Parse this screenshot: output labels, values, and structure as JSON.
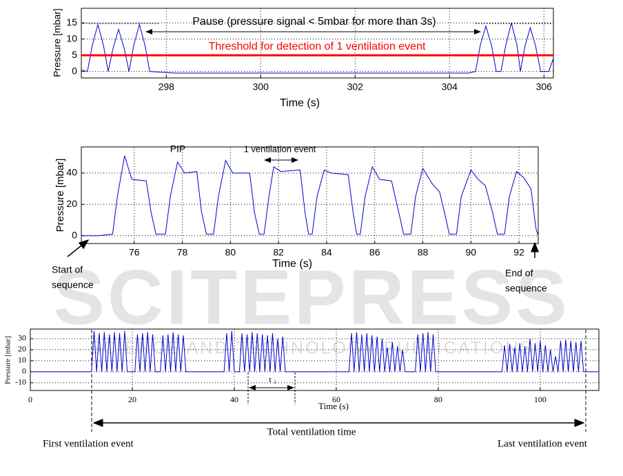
{
  "watermark": {
    "title": "SCITEPRESS",
    "subtitle": "SCIENCE AND TECHNOLOGY PUBLICATIONS"
  },
  "chart_data": [
    {
      "type": "line",
      "x_label": "Time (s)",
      "y_label": "Pressure [mbar]",
      "annotations": [
        "Pause (pressure signal < 5mbar for more than 3s)",
        "Threshold for detection of 1 ventilation event"
      ],
      "threshold": 5,
      "threshold_color": "#ff0000",
      "xlim": [
        296.2,
        306.2
      ],
      "xticks": [
        298,
        300,
        302,
        304,
        306
      ],
      "ylim": [
        -2,
        19.5
      ],
      "yticks": [
        0,
        5,
        10,
        15
      ],
      "grid": true,
      "series": [
        {
          "color": "#0000cc",
          "x": [
            296.2,
            296.33,
            296.43,
            296.55,
            296.67,
            296.77,
            296.87,
            296.99,
            297.11,
            297.21,
            297.31,
            297.43,
            297.55,
            297.65,
            298.2,
            304.4,
            304.55,
            304.65,
            304.77,
            304.89,
            304.99,
            305.09,
            305.19,
            305.31,
            305.43,
            305.5,
            305.6,
            305.71,
            305.82,
            305.93,
            306.1,
            306.2
          ],
          "values": [
            0.5,
            0,
            8,
            14.5,
            8,
            0,
            7,
            13,
            7,
            0,
            8,
            14.5,
            8,
            0,
            -0.5,
            -0.5,
            0,
            8,
            14,
            8,
            0,
            0,
            8,
            15,
            8,
            0,
            8,
            13.5,
            8,
            0,
            0,
            4
          ]
        }
      ]
    },
    {
      "type": "line",
      "x_label": "Time (s)",
      "y_label": "Pressure [mbar]",
      "annotations": [
        "PIP",
        "1 ventilation event",
        "Start of",
        "sequence",
        "End of",
        "sequence"
      ],
      "xlim": [
        73.8,
        92.8
      ],
      "xticks": [
        76,
        78,
        80,
        82,
        84,
        86,
        88,
        90,
        92
      ],
      "ylim": [
        -5,
        56.7
      ],
      "yticks": [
        0,
        20,
        40
      ],
      "grid": true,
      "series": [
        {
          "color": "#0000cc",
          "x": [
            73.8,
            74.5,
            75.1,
            75.3,
            75.6,
            75.9,
            76.5,
            76.7,
            76.9,
            77.3,
            77.5,
            77.8,
            78.1,
            78.6,
            78.8,
            79.0,
            79.3,
            79.5,
            79.8,
            80.1,
            80.8,
            81.0,
            81.2,
            81.4,
            81.6,
            81.8,
            82.1,
            82.9,
            83.1,
            83.25,
            83.4,
            83.6,
            83.9,
            84.2,
            84.9,
            85.1,
            85.25,
            85.4,
            85.6,
            85.9,
            86.2,
            86.7,
            87.0,
            87.2,
            87.5,
            87.7,
            88.0,
            88.4,
            88.7,
            88.9,
            89.1,
            89.4,
            89.6,
            90.0,
            90.3,
            90.6,
            90.9,
            91.1,
            91.4,
            91.6,
            91.9,
            92.2,
            92.5,
            92.7,
            92.8
          ],
          "values": [
            0,
            0,
            1,
            25,
            51,
            36,
            35,
            15,
            1,
            1,
            25,
            47,
            40,
            41,
            15,
            1,
            1,
            25,
            48,
            40,
            40,
            15,
            1,
            1,
            25,
            44,
            41,
            42,
            15,
            1,
            1,
            25,
            42,
            40,
            39,
            15,
            1,
            1,
            25,
            44,
            36,
            35,
            15,
            1,
            1,
            25,
            43,
            33,
            28,
            15,
            1,
            1,
            25,
            42,
            36,
            32,
            15,
            1,
            1,
            25,
            41,
            37,
            30,
            5,
            0
          ]
        }
      ]
    },
    {
      "type": "line",
      "x_label": "Time (s)",
      "y_label": "Pressure [mbar]",
      "annotations": [
        "t",
        "i",
        "First ventilation event",
        "Total ventilation time",
        "Last ventilation event"
      ],
      "xlim": [
        0,
        111.5
      ],
      "xticks": [
        0,
        20,
        40,
        60,
        80,
        100
      ],
      "ylim": [
        -17,
        38.75
      ],
      "yticks": [
        -10,
        0,
        10,
        20,
        30
      ],
      "grid": true,
      "series": [
        {
          "color": "#0000cc",
          "x": [
            0,
            12,
            12.5,
            13,
            13.5,
            14,
            14.5,
            15,
            15.5,
            16,
            16.5,
            17,
            17.5,
            18,
            18.5,
            19,
            20.5,
            21,
            21.5,
            22,
            22.5,
            23,
            23.5,
            24,
            24.5,
            25.5,
            26,
            26.5,
            27,
            27.5,
            28,
            28.5,
            29,
            29.5,
            30,
            30.5,
            31,
            38,
            38.5,
            39,
            39.5,
            40,
            41,
            41.5,
            42,
            42.5,
            43,
            43.5,
            44,
            44.5,
            45,
            45.5,
            46,
            46.5,
            47,
            47.5,
            48,
            48.5,
            49,
            49.5,
            50,
            62.5,
            63,
            63.5,
            64,
            64.5,
            65,
            65.5,
            66,
            66.5,
            67,
            67.5,
            68,
            68.5,
            69,
            69.5,
            70,
            70.5,
            71,
            71.5,
            72,
            72.5,
            73,
            73.5,
            75.5,
            76,
            76.5,
            77,
            77.5,
            78,
            78.5,
            79,
            79.5,
            92.5,
            93,
            93.5,
            94,
            94.5,
            95,
            95.5,
            96,
            96.5,
            97,
            97.5,
            98,
            98.5,
            99,
            99.5,
            100,
            100.5,
            101,
            101.5,
            102,
            102.5,
            103,
            103.5,
            104,
            104.5,
            105,
            105.5,
            106,
            106.5,
            107,
            107.5,
            108,
            108.5,
            111.5
          ],
          "values": [
            0,
            0,
            37,
            0,
            35,
            0,
            36,
            0,
            34,
            0,
            36,
            0,
            35,
            0,
            37,
            0,
            0,
            34,
            0,
            35,
            0,
            36,
            0,
            34,
            0,
            0,
            33,
            0,
            34,
            0,
            36,
            0,
            34,
            0,
            33,
            0,
            0,
            0,
            35,
            0,
            37,
            0,
            0,
            35,
            0,
            34,
            0,
            36,
            0,
            35,
            0,
            34,
            0,
            33,
            0,
            35,
            0,
            30,
            0,
            32,
            0,
            0,
            35,
            0,
            36,
            0,
            34,
            0,
            35,
            0,
            33,
            0,
            32,
            0,
            30,
            0,
            22,
            0,
            27,
            0,
            23,
            0,
            20,
            0,
            0,
            34,
            0,
            35,
            0,
            36,
            0,
            34,
            0,
            0,
            24,
            0,
            25,
            0,
            22,
            0,
            26,
            0,
            23,
            0,
            30,
            0,
            26,
            0,
            28,
            0,
            24,
            0,
            20,
            0,
            14,
            0,
            28,
            0,
            29,
            0,
            28,
            0,
            27,
            0,
            28,
            0,
            0
          ]
        }
      ]
    }
  ]
}
